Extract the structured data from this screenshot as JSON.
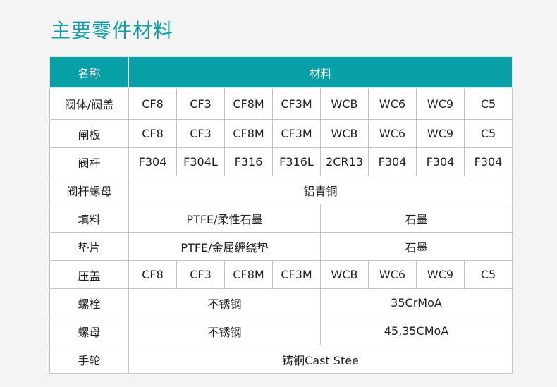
{
  "title": "主要零件材料",
  "header": {
    "name": "名称",
    "material": "材料"
  },
  "rows": [
    {
      "name": "阀体/阀盖",
      "cells": [
        "CF8",
        "CF3",
        "CF8M",
        "CF3M",
        "WCB",
        "WC6",
        "WC9",
        "C5"
      ]
    },
    {
      "name": "闸板",
      "cells": [
        "CF8",
        "CF3",
        "CF8M",
        "CF3M",
        "WCB",
        "WC6",
        "WC9",
        "C5"
      ]
    },
    {
      "name": "阀杆",
      "cells": [
        "F304",
        "F304L",
        "F316",
        "F316L",
        "2CR13",
        "F304",
        "F304",
        "F304"
      ]
    },
    {
      "name": "阀杆螺母",
      "full": "铝青铜"
    },
    {
      "name": "填料",
      "left": "PTFE/柔性石墨",
      "right": "石墨"
    },
    {
      "name": "垫片",
      "left": "PTFE/金属缠绕垫",
      "right": "石墨"
    },
    {
      "name": "压盖",
      "cells": [
        "CF8",
        "CF3",
        "CF8M",
        "CF3M",
        "WCB",
        "WC6",
        "WC9",
        "C5"
      ]
    },
    {
      "name": "螺栓",
      "left": "不锈钢",
      "right": "35CrMoA"
    },
    {
      "name": "螺母",
      "left": "不锈钢",
      "right": "45,35CMoA"
    },
    {
      "name": "手轮",
      "full": "铸钢Cast Stee"
    }
  ]
}
